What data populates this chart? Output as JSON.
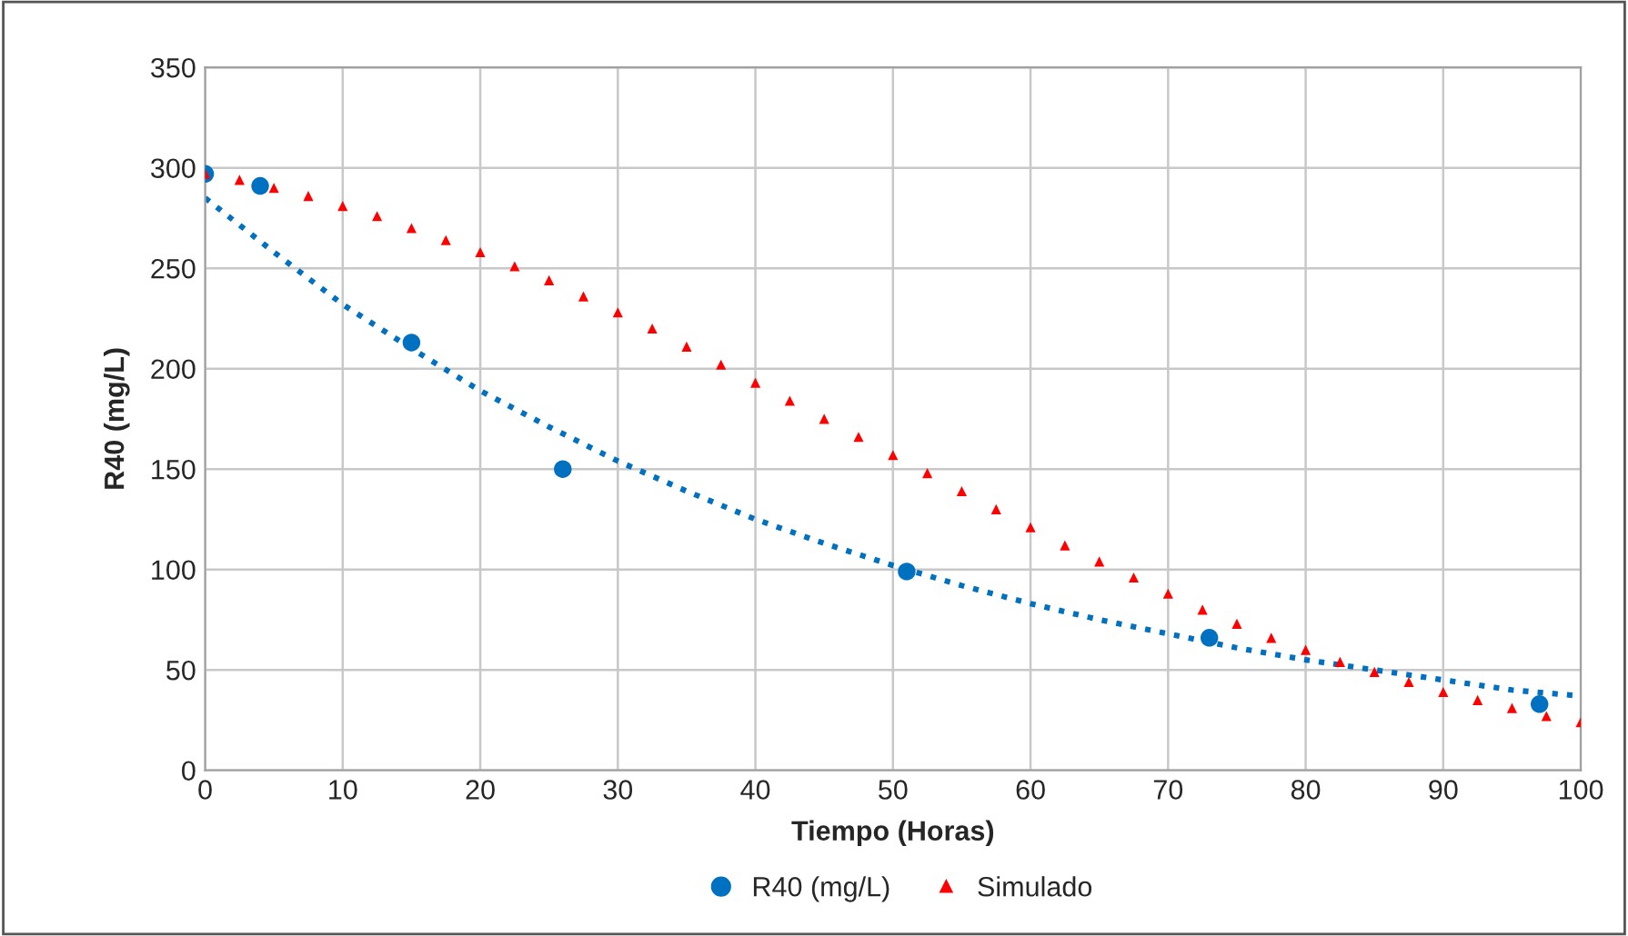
{
  "chart_data": {
    "type": "scatter",
    "xlabel": "Tiempo (Horas)",
    "ylabel": "R40 (mg/L)",
    "xlim": [
      0,
      100
    ],
    "ylim": [
      0,
      350
    ],
    "xticks": [
      0,
      10,
      20,
      30,
      40,
      50,
      60,
      70,
      80,
      90,
      100
    ],
    "yticks": [
      0,
      50,
      100,
      150,
      200,
      250,
      300,
      350
    ],
    "grid": true,
    "legend": "bottom",
    "series": [
      {
        "name": "R40 (mg/L)",
        "marker": "circle",
        "color": "#0070c0",
        "x": [
          0,
          4,
          15,
          26,
          51,
          73,
          97
        ],
        "values": [
          297,
          291,
          213,
          150,
          99,
          66,
          33
        ]
      },
      {
        "type": "line",
        "line_style": "dotted",
        "marker": "none",
        "color": "#0070c0",
        "x": [
          0,
          5,
          10,
          15,
          20,
          25,
          30,
          35,
          40,
          45,
          50,
          55,
          60,
          65,
          70,
          75,
          80,
          85,
          90,
          95,
          100
        ],
        "values": [
          285,
          258,
          232,
          210,
          189,
          171,
          154,
          139,
          125,
          113,
          102,
          92,
          83,
          75,
          68,
          61,
          55,
          50,
          45,
          40,
          37
        ]
      },
      {
        "name": "Simulado",
        "marker": "triangle",
        "color": "#ff0000",
        "x": [
          0,
          2.5,
          5,
          7.5,
          10,
          12.5,
          15,
          17.5,
          20,
          22.5,
          25,
          27.5,
          30,
          32.5,
          35,
          37.5,
          40,
          42.5,
          45,
          47.5,
          50,
          52.5,
          55,
          57.5,
          60,
          62.5,
          65,
          67.5,
          70,
          72.5,
          75,
          77.5,
          80,
          82.5,
          85,
          87.5,
          90,
          92.5,
          95,
          97.5,
          100
        ],
        "values": [
          297,
          294,
          290,
          286,
          281,
          276,
          270,
          264,
          258,
          251,
          244,
          236,
          228,
          220,
          211,
          202,
          193,
          184,
          175,
          166,
          157,
          148,
          139,
          130,
          121,
          112,
          104,
          96,
          88,
          80,
          73,
          66,
          60,
          54,
          49,
          44,
          39,
          35,
          31,
          27,
          24
        ]
      }
    ]
  }
}
